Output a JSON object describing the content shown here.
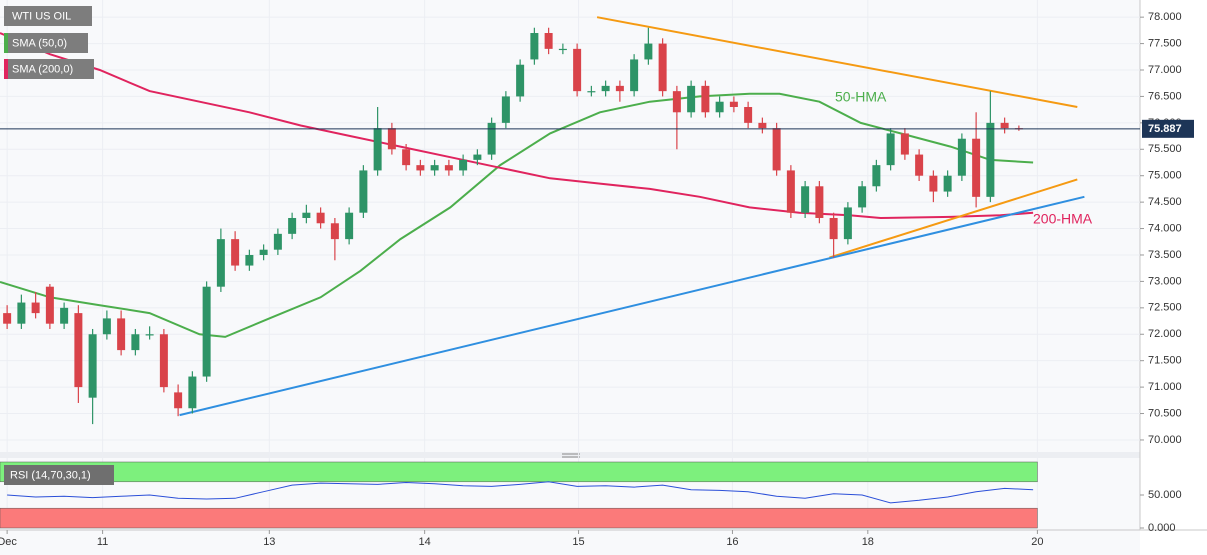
{
  "chart_data": [
    {
      "type": "candlestick",
      "title": "WTI US OIL",
      "x": [
        0,
        1,
        2,
        3,
        4,
        5,
        6,
        7,
        8,
        9,
        10,
        11,
        12,
        13,
        14,
        15,
        16,
        17,
        18,
        19,
        20,
        21,
        22,
        23,
        24,
        25,
        26,
        27,
        28,
        29,
        30,
        31,
        32,
        33,
        34,
        35,
        36,
        37,
        38,
        39,
        40,
        41,
        42,
        43,
        44,
        45,
        46,
        47,
        48,
        49,
        50,
        51,
        52,
        53,
        54,
        55,
        56,
        57,
        58,
        59,
        60,
        61,
        62,
        63,
        64,
        65,
        66,
        67,
        68,
        69,
        70,
        71
      ],
      "open": [
        72.4,
        72.2,
        72.6,
        72.9,
        72.2,
        72.4,
        70.8,
        72.0,
        72.3,
        71.7,
        72.0,
        72.0,
        70.9,
        70.6,
        71.2,
        72.9,
        73.8,
        73.3,
        73.5,
        73.6,
        73.9,
        74.2,
        74.3,
        74.1,
        73.8,
        74.3,
        75.1,
        75.9,
        75.5,
        75.2,
        75.1,
        75.2,
        75.1,
        75.3,
        75.4,
        76.0,
        76.5,
        77.2,
        77.7,
        77.4,
        77.4,
        76.6,
        76.6,
        76.7,
        76.6,
        77.2,
        77.5,
        76.6,
        76.2,
        76.7,
        76.2,
        76.4,
        76.3,
        76.0,
        75.9,
        75.1,
        74.3,
        74.8,
        74.2,
        73.8,
        74.4,
        74.8,
        75.2,
        75.8,
        75.4,
        75.0,
        74.7,
        75.0,
        75.7,
        74.6,
        76.0,
        75.9
      ],
      "high": [
        72.55,
        72.75,
        72.8,
        72.95,
        72.6,
        72.55,
        72.1,
        72.45,
        72.45,
        72.1,
        72.15,
        72.1,
        71.05,
        71.3,
        73.0,
        74.0,
        73.95,
        73.6,
        73.7,
        74.0,
        74.3,
        74.45,
        74.4,
        74.2,
        74.4,
        75.2,
        76.3,
        76.0,
        75.6,
        75.3,
        75.3,
        75.3,
        75.4,
        75.5,
        76.1,
        76.6,
        77.2,
        77.8,
        77.8,
        77.5,
        77.5,
        76.7,
        76.8,
        76.8,
        77.3,
        77.8,
        77.6,
        76.7,
        76.8,
        76.8,
        76.5,
        76.5,
        76.4,
        76.1,
        76.0,
        75.2,
        74.9,
        74.9,
        74.3,
        74.5,
        74.9,
        75.3,
        75.9,
        75.9,
        75.5,
        75.1,
        75.1,
        75.8,
        76.2,
        76.6,
        76.1,
        75.95
      ],
      "low": [
        72.1,
        72.1,
        72.3,
        72.1,
        72.1,
        70.7,
        70.3,
        71.9,
        71.6,
        71.6,
        71.9,
        70.9,
        70.45,
        70.5,
        71.1,
        72.8,
        73.2,
        73.2,
        73.4,
        73.5,
        73.8,
        74.1,
        74.0,
        73.4,
        73.7,
        74.2,
        75.0,
        75.4,
        75.1,
        75.0,
        75.0,
        75.0,
        75.0,
        75.2,
        75.3,
        75.9,
        76.4,
        77.1,
        77.3,
        77.3,
        76.5,
        76.5,
        76.5,
        76.4,
        76.5,
        77.1,
        76.5,
        75.5,
        76.1,
        76.1,
        76.1,
        76.2,
        75.9,
        75.8,
        75.0,
        74.2,
        74.2,
        74.1,
        73.45,
        73.7,
        74.3,
        74.7,
        75.1,
        75.3,
        74.9,
        74.5,
        74.6,
        74.9,
        74.4,
        74.5,
        75.8,
        75.85
      ],
      "close": [
        72.2,
        72.6,
        72.4,
        72.2,
        72.5,
        71.0,
        72.0,
        72.3,
        71.7,
        72.0,
        72.0,
        71.0,
        70.6,
        71.2,
        72.9,
        73.8,
        73.3,
        73.5,
        73.6,
        73.9,
        74.2,
        74.3,
        74.1,
        73.8,
        74.3,
        75.1,
        75.9,
        75.5,
        75.2,
        75.1,
        75.2,
        75.1,
        75.3,
        75.4,
        76.0,
        76.5,
        77.1,
        77.7,
        77.4,
        77.4,
        76.6,
        76.6,
        76.7,
        76.6,
        77.2,
        77.5,
        76.6,
        76.2,
        76.7,
        76.2,
        76.4,
        76.3,
        76.0,
        75.9,
        75.1,
        74.3,
        74.8,
        74.2,
        73.8,
        74.4,
        74.8,
        75.2,
        75.8,
        75.4,
        75.0,
        74.7,
        75.0,
        75.7,
        74.6,
        76.0,
        75.9,
        75.887
      ],
      "up_color": "#2e9467",
      "down_color": "#d9434a",
      "series": [
        {
          "name": "SMA (50,0)",
          "label": "50-HMA",
          "color": "#4cae4c",
          "x": [
            -0.5,
            3.0,
            6.5,
            10.0,
            13.5,
            15.3,
            18.4,
            22.0,
            24.8,
            27.6,
            31.1,
            34.6,
            38.1,
            41.6,
            45.1,
            48.6,
            52.1,
            54.2,
            57.0,
            59.9,
            62.7,
            66.2,
            69.0,
            72.0
          ],
          "values": [
            72.99,
            72.7,
            72.55,
            72.4,
            72.0,
            71.95,
            72.3,
            72.7,
            73.2,
            73.8,
            74.4,
            75.2,
            75.8,
            76.2,
            76.4,
            76.5,
            76.55,
            76.55,
            76.4,
            76.0,
            75.8,
            75.55,
            75.3,
            75.25
          ]
        },
        {
          "name": "SMA (200,0)",
          "label": "200-HMA",
          "color": "#e0245e",
          "x": [
            -0.5,
            3.0,
            6.5,
            10.0,
            13.5,
            17.0,
            20.6,
            24.1,
            27.6,
            31.1,
            34.6,
            38.1,
            41.6,
            45.1,
            48.6,
            52.1,
            55.6,
            59.1,
            61.3,
            66.2,
            69.7,
            72.0
          ],
          "values": [
            77.7,
            77.3,
            77.0,
            76.6,
            76.4,
            76.2,
            75.95,
            75.75,
            75.55,
            75.35,
            75.15,
            74.95,
            74.85,
            74.75,
            74.6,
            74.4,
            74.3,
            74.25,
            74.2,
            74.22,
            74.25,
            74.3
          ]
        }
      ],
      "trendlines": [
        {
          "color": "#f59a12",
          "x": [
            41.4,
            75.1
          ],
          "values": [
            78.0,
            76.3
          ]
        },
        {
          "color": "#f59a12",
          "x": [
            57.7,
            75.1
          ],
          "values": [
            73.45,
            74.93
          ]
        },
        {
          "color": "#2f8fe0",
          "x": [
            12.1,
            75.6
          ],
          "values": [
            70.47,
            74.6
          ]
        }
      ],
      "last_price": 75.887,
      "last_price_color": "#1d3557",
      "xlim": [
        -0.5,
        79.5
      ],
      "xticks": [
        {
          "value": 0,
          "label": "Dec"
        },
        {
          "value": 6.7,
          "label": "11"
        },
        {
          "value": 18.4,
          "label": "13"
        },
        {
          "value": 29.3,
          "label": "14"
        },
        {
          "value": 40.1,
          "label": "15"
        },
        {
          "value": 50.9,
          "label": "16"
        },
        {
          "value": 60.4,
          "label": "18"
        },
        {
          "value": 72.3,
          "label": "20"
        }
      ],
      "ylim": [
        69.81,
        78.23
      ],
      "yticks": [
        {
          "value": 70,
          "label": "70.000"
        },
        {
          "value": 70.5,
          "label": "70.500"
        },
        {
          "value": 71,
          "label": "71.000"
        },
        {
          "value": 71.5,
          "label": "71.500"
        },
        {
          "value": 72,
          "label": "72.000"
        },
        {
          "value": 72.5,
          "label": "72.500"
        },
        {
          "value": 73,
          "label": "73.000"
        },
        {
          "value": 73.5,
          "label": "73.500"
        },
        {
          "value": 74,
          "label": "74.000"
        },
        {
          "value": 74.5,
          "label": "74.500"
        },
        {
          "value": 75,
          "label": "75.000"
        },
        {
          "value": 75.5,
          "label": "75.500"
        },
        {
          "value": 76,
          "label": "76.000"
        },
        {
          "value": 76.5,
          "label": "76.500"
        },
        {
          "value": 77,
          "label": "77.000"
        },
        {
          "value": 77.5,
          "label": "77.500"
        },
        {
          "value": 78,
          "label": "78.000"
        }
      ],
      "grid": true
    },
    {
      "type": "line",
      "title": "RSI (14,70,30,1)",
      "color": "#2b4fd8",
      "x": [
        0,
        2,
        4,
        6,
        8,
        10,
        12,
        14,
        16,
        18,
        20,
        22,
        24,
        26,
        28,
        30,
        32,
        34,
        36,
        38,
        40,
        42,
        44,
        46,
        48,
        50,
        52,
        54,
        56,
        58,
        60,
        62,
        64,
        66,
        68,
        70,
        72
      ],
      "values": [
        50,
        47,
        48,
        46,
        48,
        50,
        45,
        44,
        45,
        55,
        65,
        68,
        67,
        66,
        69,
        67,
        64,
        63,
        66,
        70,
        63,
        64,
        62,
        65,
        58,
        57,
        55,
        48,
        45,
        52,
        50,
        38,
        42,
        47,
        55,
        60,
        58
      ],
      "bands": [
        {
          "from": 70,
          "to": 100,
          "color": "#7df07d"
        },
        {
          "from": 0,
          "to": 30,
          "color": "#fb7a7a"
        }
      ],
      "ylim": [
        0,
        100
      ],
      "yticks": [
        {
          "value": 0,
          "label": "0.000"
        },
        {
          "value": 50,
          "label": "50.000"
        }
      ]
    }
  ]
}
